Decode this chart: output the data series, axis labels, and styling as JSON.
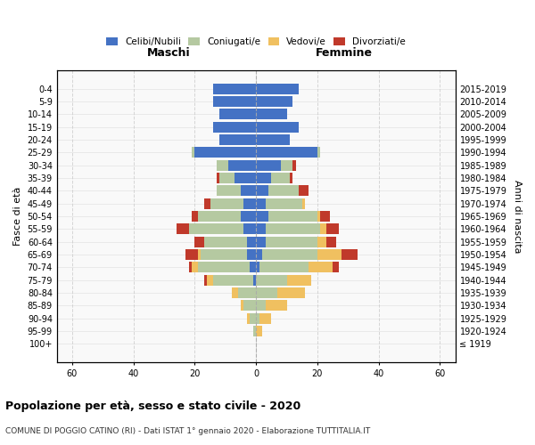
{
  "age_groups": [
    "100+",
    "95-99",
    "90-94",
    "85-89",
    "80-84",
    "75-79",
    "70-74",
    "65-69",
    "60-64",
    "55-59",
    "50-54",
    "45-49",
    "40-44",
    "35-39",
    "30-34",
    "25-29",
    "20-24",
    "15-19",
    "10-14",
    "5-9",
    "0-4"
  ],
  "birth_years": [
    "≤ 1919",
    "1920-1924",
    "1925-1929",
    "1930-1934",
    "1935-1939",
    "1940-1944",
    "1945-1949",
    "1950-1954",
    "1955-1959",
    "1960-1964",
    "1965-1969",
    "1970-1974",
    "1975-1979",
    "1980-1984",
    "1985-1989",
    "1990-1994",
    "1995-1999",
    "2000-2004",
    "2005-2009",
    "2010-2014",
    "2015-2019"
  ],
  "males": {
    "celibi": [
      0,
      0,
      0,
      0,
      0,
      1,
      2,
      3,
      3,
      4,
      5,
      4,
      5,
      7,
      9,
      20,
      12,
      14,
      12,
      14,
      14
    ],
    "coniugati": [
      0,
      1,
      2,
      4,
      6,
      13,
      17,
      15,
      14,
      18,
      14,
      11,
      8,
      5,
      4,
      1,
      0,
      0,
      0,
      0,
      0
    ],
    "vedovi": [
      0,
      0,
      1,
      1,
      2,
      2,
      2,
      1,
      0,
      0,
      0,
      0,
      0,
      0,
      0,
      0,
      0,
      0,
      0,
      0,
      0
    ],
    "divorziati": [
      0,
      0,
      0,
      0,
      0,
      1,
      1,
      4,
      3,
      4,
      2,
      2,
      0,
      1,
      0,
      0,
      0,
      0,
      0,
      0,
      0
    ]
  },
  "females": {
    "nubili": [
      0,
      0,
      0,
      0,
      0,
      0,
      1,
      2,
      3,
      3,
      4,
      3,
      4,
      5,
      8,
      20,
      11,
      14,
      10,
      12,
      14
    ],
    "coniugate": [
      0,
      0,
      1,
      3,
      7,
      10,
      16,
      18,
      17,
      18,
      16,
      12,
      10,
      6,
      4,
      1,
      0,
      0,
      0,
      0,
      0
    ],
    "vedove": [
      0,
      2,
      4,
      7,
      9,
      8,
      8,
      8,
      3,
      2,
      1,
      1,
      0,
      0,
      0,
      0,
      0,
      0,
      0,
      0,
      0
    ],
    "divorziate": [
      0,
      0,
      0,
      0,
      0,
      0,
      2,
      5,
      3,
      4,
      3,
      0,
      3,
      1,
      1,
      0,
      0,
      0,
      0,
      0,
      0
    ]
  },
  "colors": {
    "celibi": "#4472c4",
    "coniugati": "#b5c9a1",
    "vedovi": "#f0c060",
    "divorziati": "#c0392b"
  },
  "xlim": 65,
  "title": "Popolazione per età, sesso e stato civile - 2020",
  "subtitle": "COMUNE DI POGGIO CATINO (RI) - Dati ISTAT 1° gennaio 2020 - Elaborazione TUTTITALIA.IT",
  "xlabel_left": "Maschi",
  "xlabel_right": "Femmine",
  "ylabel_left": "Fasce di età",
  "ylabel_right": "Anni di nascita",
  "legend_labels": [
    "Celibi/Nubili",
    "Coniugati/e",
    "Vedovi/e",
    "Divorziati/e"
  ],
  "bg_color": "#f9f9f9",
  "grid_color": "#cccccc"
}
